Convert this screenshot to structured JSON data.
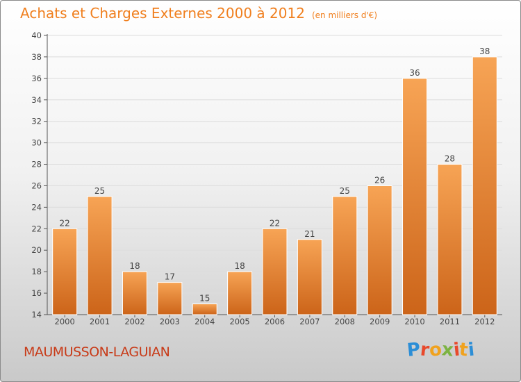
{
  "header": {
    "title": "Achats et Charges Externes 2000 à 2012",
    "subtitle": "(en milliers d'€)"
  },
  "footer": {
    "commune": "MAUMUSSON-LAGUIAN",
    "logo_letters": [
      "P",
      "r",
      "o",
      "x",
      "i",
      "t",
      "i"
    ],
    "logo_colors": [
      "#2c8ed6",
      "#e8492b",
      "#f0a21e",
      "#7cb342",
      "#e8492b",
      "#f0a21e",
      "#2c8ed6"
    ]
  },
  "chart_data": {
    "type": "bar",
    "title": "Achats et Charges Externes 2000 à 2012",
    "subtitle": "(en milliers d'€)",
    "categories": [
      "2000",
      "2001",
      "2002",
      "2003",
      "2004",
      "2005",
      "2006",
      "2007",
      "2008",
      "2009",
      "2010",
      "2011",
      "2012"
    ],
    "values": [
      22,
      25,
      18,
      17,
      15,
      18,
      22,
      21,
      25,
      26,
      36,
      28,
      38
    ],
    "ylim": [
      14,
      40
    ],
    "yticks": [
      14,
      16,
      18,
      20,
      22,
      24,
      26,
      28,
      30,
      32,
      34,
      36,
      38,
      40
    ],
    "xlabel": "",
    "ylabel": "",
    "bar_color_top": "#f7a455",
    "bar_color_bottom": "#cc6419",
    "grid": true
  }
}
